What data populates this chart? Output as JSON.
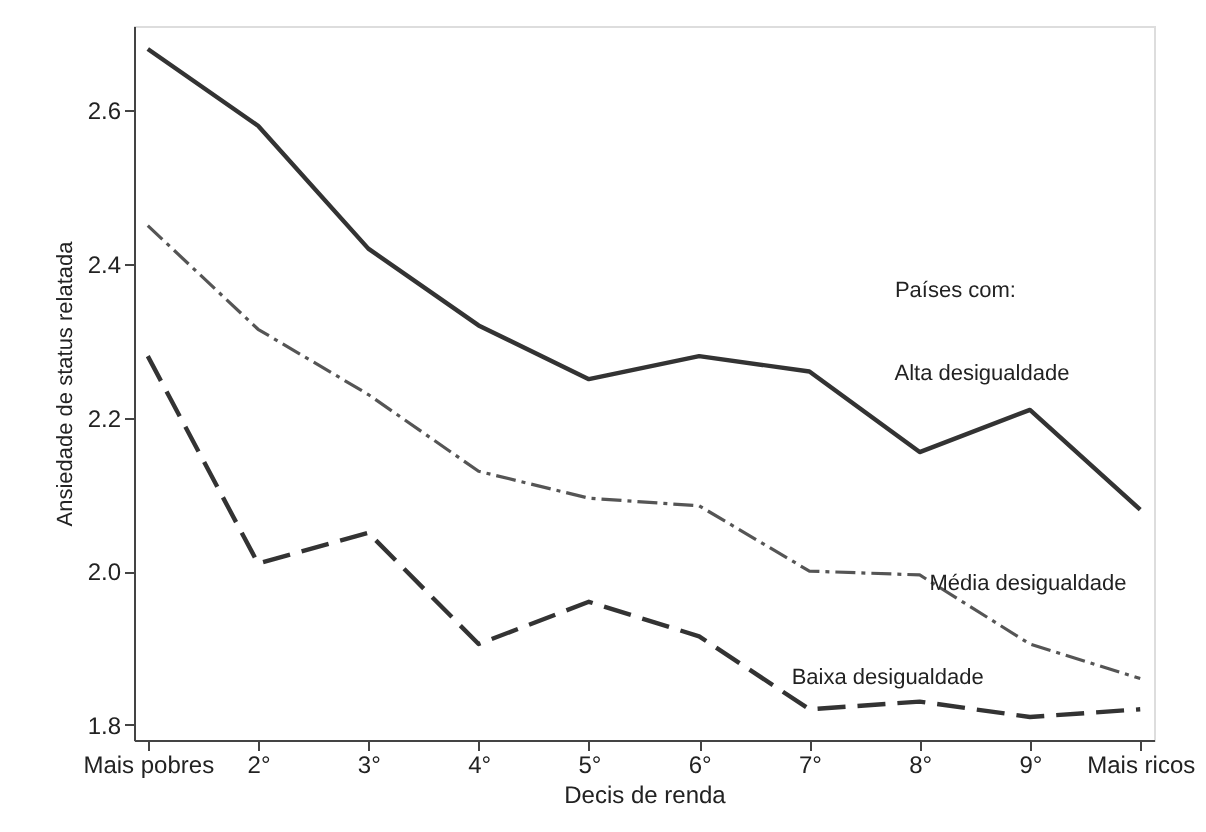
{
  "chart_data": {
    "type": "line",
    "xlabel": "Decis de renda",
    "ylabel": "Ansiedade de status relatada",
    "categories": [
      "Mais pobres",
      "2°",
      "3°",
      "4°",
      "5°",
      "6°",
      "7°",
      "8°",
      "9°",
      "Mais ricos"
    ],
    "series": [
      {
        "name": "Alta desigualdade",
        "color": "#333333",
        "line_style": "solid",
        "values": [
          2.68,
          2.58,
          2.42,
          2.32,
          2.25,
          2.28,
          2.26,
          2.155,
          2.21,
          2.08
        ]
      },
      {
        "name": "Média desigualdade",
        "color": "#555555",
        "line_style": "dashdot",
        "values": [
          2.45,
          2.315,
          2.23,
          2.13,
          2.095,
          2.085,
          2.0,
          1.995,
          1.905,
          1.86
        ]
      },
      {
        "name": "Baixa desigualdade",
        "color": "#333333",
        "line_style": "dashed",
        "values": [
          2.28,
          2.01,
          2.05,
          1.905,
          1.96,
          1.915,
          1.82,
          1.83,
          1.81,
          1.82
        ]
      }
    ],
    "annotations": [
      "Países com:"
    ],
    "ylim": [
      1.78,
      2.71
    ],
    "yticks": [
      1.8,
      {
        "value": 2,
        "label": "2.0"
      },
      2.2,
      2.4,
      2.6
    ],
    "grid": false,
    "marker": "none"
  }
}
